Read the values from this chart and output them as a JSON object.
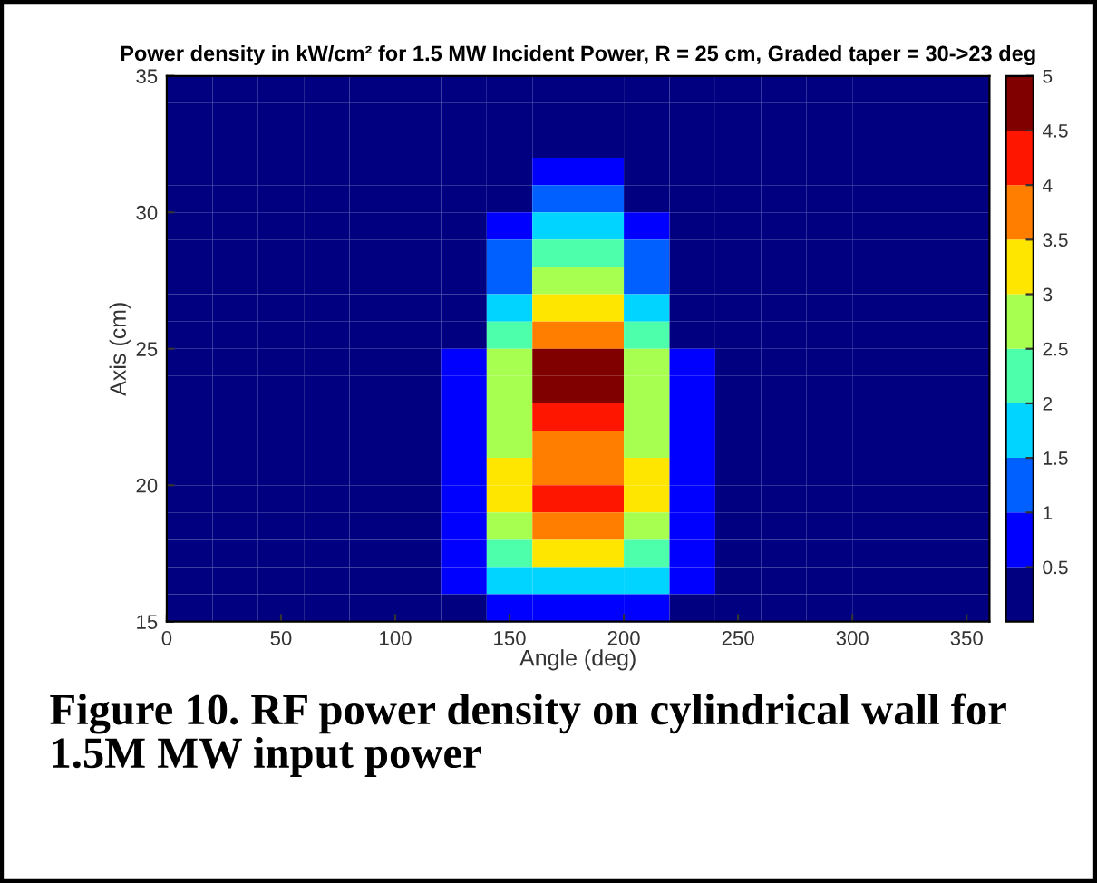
{
  "chart_data": {
    "type": "heatmap",
    "title": "Power density in kW/cm² for 1.5 MW Incident Power, R = 25 cm, Graded taper = 30->23 deg",
    "xlabel": "Angle (deg)",
    "ylabel": "Axis (cm)",
    "annotations": [
      "Figure 10. RF power density on cylindrical wall for 1.5M MW input power"
    ],
    "x": [
      10,
      30,
      50,
      70,
      90,
      110,
      130,
      150,
      170,
      190,
      210,
      230,
      250,
      270,
      290,
      310,
      330,
      350
    ],
    "y": [
      34.5,
      33.5,
      32.5,
      31.5,
      30.5,
      29.5,
      28.5,
      27.5,
      26.5,
      25.5,
      24.5,
      23.5,
      22.5,
      21.5,
      20.5,
      19.5,
      18.5,
      17.5,
      16.5,
      15.5
    ],
    "xlim": [
      0,
      360
    ],
    "xticks": [
      0,
      50,
      100,
      150,
      200,
      250,
      300,
      350
    ],
    "ylim": [
      15,
      35
    ],
    "yticks": [
      15,
      20,
      25,
      30,
      35
    ],
    "clim": [
      0,
      5
    ],
    "cticks": [
      0.5,
      1,
      1.5,
      2,
      2.5,
      3,
      3.5,
      4,
      4.5,
      5
    ],
    "cells": [
      [
        0,
        0,
        0,
        0,
        0,
        0,
        0,
        0,
        0,
        0,
        0,
        0,
        0,
        0,
        0,
        0,
        0,
        0
      ],
      [
        0,
        0,
        0,
        0,
        0,
        0,
        0,
        0,
        0,
        0,
        0,
        0,
        0,
        0,
        0,
        0,
        0,
        0
      ],
      [
        0,
        0,
        0,
        0,
        0,
        0,
        0,
        0,
        0,
        0,
        0,
        0,
        0,
        0,
        0,
        0,
        0,
        0
      ],
      [
        0,
        0,
        0,
        0,
        0,
        0,
        0,
        0,
        0.7,
        0.7,
        0,
        0,
        0,
        0,
        0,
        0,
        0,
        0
      ],
      [
        0,
        0,
        0,
        0,
        0,
        0,
        0,
        0.3,
        1.2,
        1.2,
        0.3,
        0,
        0,
        0,
        0,
        0,
        0,
        0
      ],
      [
        0,
        0,
        0,
        0,
        0,
        0,
        0,
        0.7,
        1.7,
        1.7,
        0.7,
        0,
        0,
        0,
        0,
        0,
        0,
        0
      ],
      [
        0,
        0,
        0,
        0,
        0,
        0,
        0,
        1.0,
        2.3,
        2.3,
        1.0,
        0,
        0,
        0,
        0,
        0,
        0,
        0
      ],
      [
        0,
        0,
        0,
        0,
        0,
        0,
        0,
        1.4,
        2.8,
        2.8,
        1.4,
        0,
        0,
        0,
        0,
        0,
        0,
        0
      ],
      [
        0,
        0,
        0,
        0,
        0,
        0,
        0,
        1.8,
        3.3,
        3.3,
        1.8,
        0,
        0,
        0,
        0,
        0,
        0,
        0
      ],
      [
        0,
        0,
        0,
        0,
        0,
        0,
        0.3,
        2.2,
        3.9,
        3.9,
        2.2,
        0.3,
        0,
        0,
        0,
        0,
        0,
        0
      ],
      [
        0,
        0,
        0,
        0,
        0,
        0,
        0.5,
        2.5,
        4.6,
        4.6,
        2.5,
        0.5,
        0,
        0,
        0,
        0,
        0,
        0
      ],
      [
        0,
        0,
        0,
        0,
        0,
        0,
        0.6,
        2.7,
        4.7,
        4.7,
        2.7,
        0.6,
        0,
        0,
        0,
        0,
        0,
        0
      ],
      [
        0,
        0,
        0,
        0,
        0,
        0,
        0.7,
        2.8,
        4.1,
        4.1,
        2.8,
        0.7,
        0,
        0,
        0,
        0,
        0,
        0
      ],
      [
        0,
        0,
        0,
        0,
        0,
        0,
        0.8,
        2.9,
        3.8,
        3.8,
        2.9,
        0.8,
        0,
        0,
        0,
        0,
        0,
        0
      ],
      [
        0,
        0,
        0,
        0,
        0,
        0,
        0.9,
        3.0,
        3.9,
        3.9,
        3.0,
        0.9,
        0,
        0,
        0,
        0,
        0,
        0
      ],
      [
        0,
        0,
        0,
        0,
        0,
        0,
        0.9,
        3.0,
        4.2,
        4.2,
        3.0,
        0.9,
        0,
        0,
        0,
        0,
        0,
        0
      ],
      [
        0,
        0,
        0,
        0,
        0,
        0,
        0.9,
        2.9,
        3.9,
        3.9,
        2.9,
        0.9,
        0,
        0,
        0,
        0,
        0,
        0
      ],
      [
        0,
        0,
        0,
        0,
        0,
        0,
        0.8,
        2.4,
        3.0,
        3.0,
        2.4,
        0.8,
        0,
        0,
        0,
        0,
        0,
        0
      ],
      [
        0,
        0,
        0,
        0,
        0,
        0,
        0.6,
        1.5,
        1.8,
        1.8,
        1.5,
        0.6,
        0,
        0,
        0,
        0,
        0,
        0
      ],
      [
        0,
        0,
        0,
        0,
        0,
        0,
        0.3,
        0.6,
        0.7,
        0.7,
        0.6,
        0.3,
        0,
        0,
        0,
        0,
        0,
        0
      ]
    ]
  }
}
